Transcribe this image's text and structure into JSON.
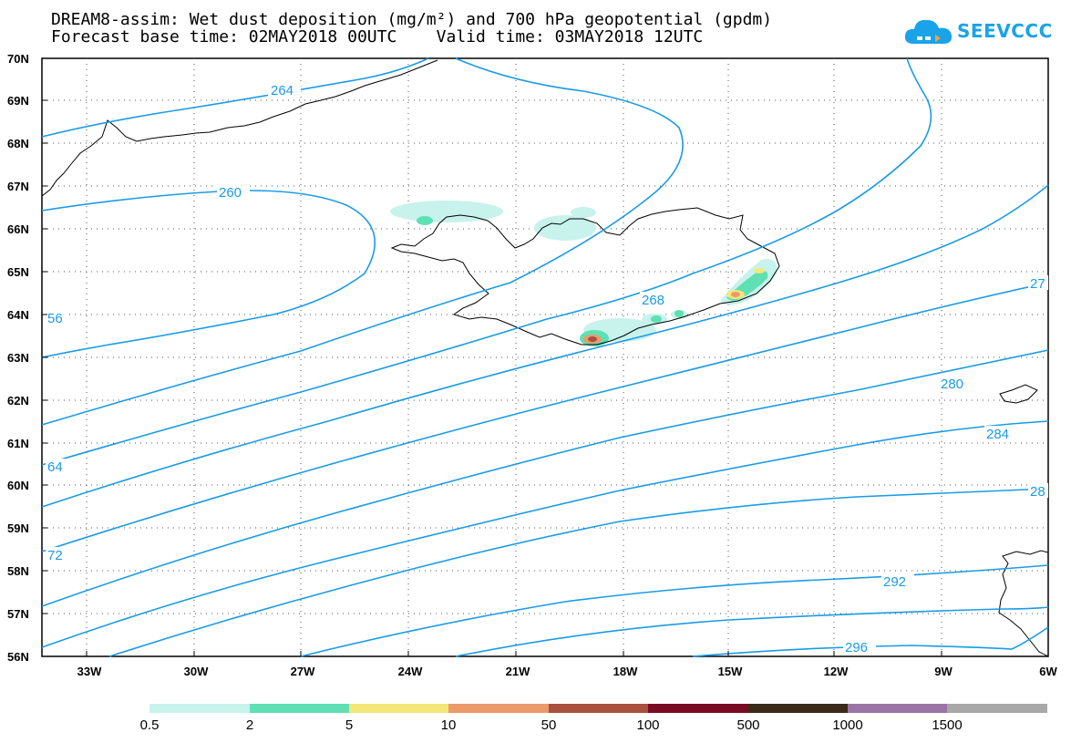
{
  "title": {
    "line1": "DREAM8-assim: Wet dust deposition (mg/m²) and 700 hPa geopotential (gpdm)",
    "line2": "Forecast base time: 02MAY2018 00UTC    Valid time: 03MAY2018 12UTC"
  },
  "logo": {
    "text": "SEEVCCC",
    "icon": "cloud-icon",
    "color": "#1aa3e8"
  },
  "map": {
    "lat_labels": [
      "70N",
      "69N",
      "68N",
      "67N",
      "66N",
      "65N",
      "64N",
      "63N",
      "62N",
      "61N",
      "60N",
      "59N",
      "58N",
      "57N",
      "56N"
    ],
    "lon_labels": [
      "33W",
      "30W",
      "27W",
      "24W",
      "21W",
      "18W",
      "15W",
      "12W",
      "9W",
      "6W"
    ],
    "contour_color": "#1a9be6",
    "contour_labels": [
      "264",
      "260",
      "268",
      "280",
      "284",
      "292",
      "296",
      "27",
      "28",
      "64",
      "72",
      "56"
    ]
  },
  "legend": {
    "colors": [
      "#c8f2ec",
      "#5fe0b4",
      "#f5e67a",
      "#ec9a6a",
      "#a9503e",
      "#7a0a22",
      "#3a2a1a",
      "#9a74a4",
      "#a8a8a8"
    ],
    "labels": [
      "0.5",
      "2",
      "5",
      "10",
      "50",
      "100",
      "500",
      "1000",
      "1500"
    ]
  }
}
